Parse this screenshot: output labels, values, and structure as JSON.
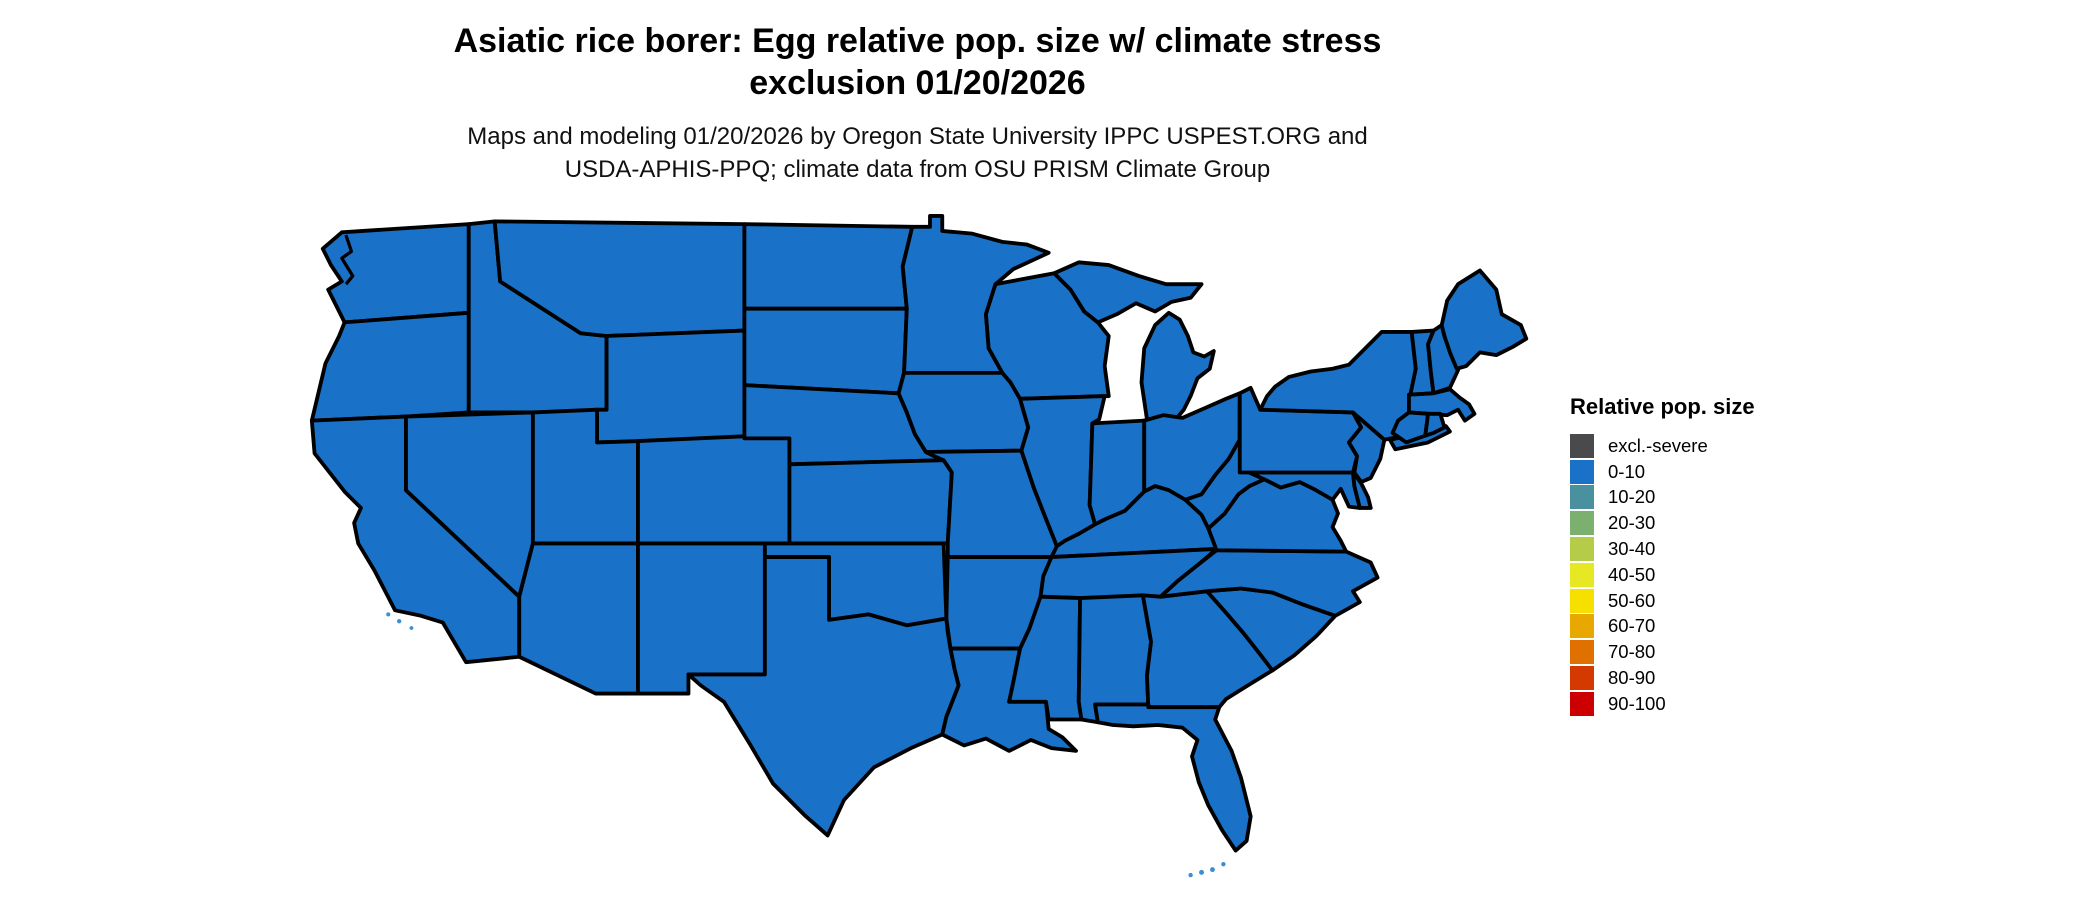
{
  "header": {
    "title_line1": "Asiatic rice borer: Egg relative pop. size w/ climate stress",
    "title_line2": "exclusion 01/20/2026",
    "subtitle_line1": "Maps and modeling 01/20/2026 by Oregon State University IPPC USPEST.ORG and",
    "subtitle_line2": "USDA-APHIS-PPQ; climate data from OSU PRISM Climate Group"
  },
  "legend": {
    "title": "Relative pop. size",
    "items": [
      {
        "label": "excl.-severe",
        "color": "#4a4a4c"
      },
      {
        "label": "0-10",
        "color": "#1971c8"
      },
      {
        "label": "10-20",
        "color": "#4a91a0"
      },
      {
        "label": "20-30",
        "color": "#7cb06e"
      },
      {
        "label": "30-40",
        "color": "#b5cc48"
      },
      {
        "label": "40-50",
        "color": "#e5e822"
      },
      {
        "label": "50-60",
        "color": "#f5e000"
      },
      {
        "label": "60-70",
        "color": "#e8a800"
      },
      {
        "label": "70-80",
        "color": "#e07000"
      },
      {
        "label": "80-90",
        "color": "#d43a00"
      },
      {
        "label": "90-100",
        "color": "#cc0000"
      }
    ]
  },
  "map": {
    "region": "contiguous United States",
    "fill_category": "0-10",
    "fill": "#1971c8",
    "island_fill": "#3e8fd2",
    "border": "#000000",
    "background": "#ffffff"
  }
}
